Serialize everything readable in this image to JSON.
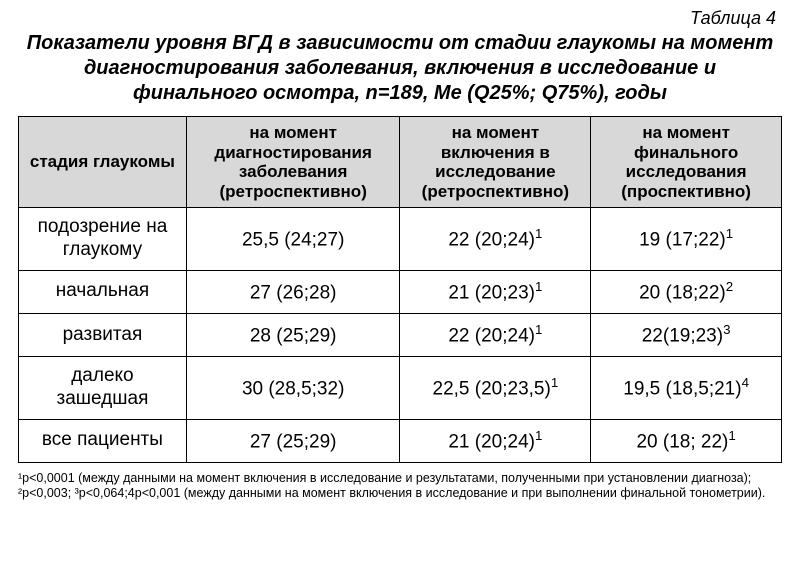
{
  "tableLabel": "Таблица 4",
  "caption": "Показатели уровня ВГД в зависимости от стадии глаукомы на момент диагностирования заболевания, включения в исследование и финального осмотра, n=189, Me (Q25%; Q75%), годы",
  "table": {
    "type": "table",
    "columns": [
      "стадия глаукомы",
      "на момент диагностирования заболевания (ретроспективно)",
      "на момент включения в исследование (ретроспективно)",
      "на момент финального исследования (проспективно)"
    ],
    "header_bg": "#d8d8d8",
    "border_color": "#000000",
    "rows": [
      {
        "label": "подозрение на глаукому",
        "c1": {
          "text": "25,5 (24;27)",
          "sup": ""
        },
        "c2": {
          "text": "22 (20;24)",
          "sup": "1"
        },
        "c3": {
          "text": "19 (17;22)",
          "sup": "1"
        }
      },
      {
        "label": "начальная",
        "c1": {
          "text": "27 (26;28)",
          "sup": ""
        },
        "c2": {
          "text": "21 (20;23)",
          "sup": "1"
        },
        "c3": {
          "text": "20 (18;22)",
          "sup": "2"
        }
      },
      {
        "label": "развитая",
        "c1": {
          "text": "28 (25;29)",
          "sup": ""
        },
        "c2": {
          "text": "22 (20;24)",
          "sup": "1"
        },
        "c3": {
          "text": "22(19;23)",
          "sup": "3"
        }
      },
      {
        "label": "далеко зашедшая",
        "c1": {
          "text": "30 (28,5;32)",
          "sup": ""
        },
        "c2": {
          "text": "22,5 (20;23,5)",
          "sup": "1"
        },
        "c3": {
          "text": "19,5 (18,5;21)",
          "sup": "4"
        }
      },
      {
        "label": "все пациенты",
        "c1": {
          "text": "27 (25;29)",
          "sup": ""
        },
        "c2": {
          "text": "21 (20;24)",
          "sup": "1"
        },
        "c3": {
          "text": "20 (18; 22)",
          "sup": "1"
        }
      }
    ]
  },
  "footnotes": "¹p<0,0001 (между данными на момент включения в исследование и результатами, полученными при установлении диагноза);  ²p<0,003;  ³p<0,064;4p<0,001 (между данными на момент включения в исследование и при выполнении финальной тонометрии)."
}
